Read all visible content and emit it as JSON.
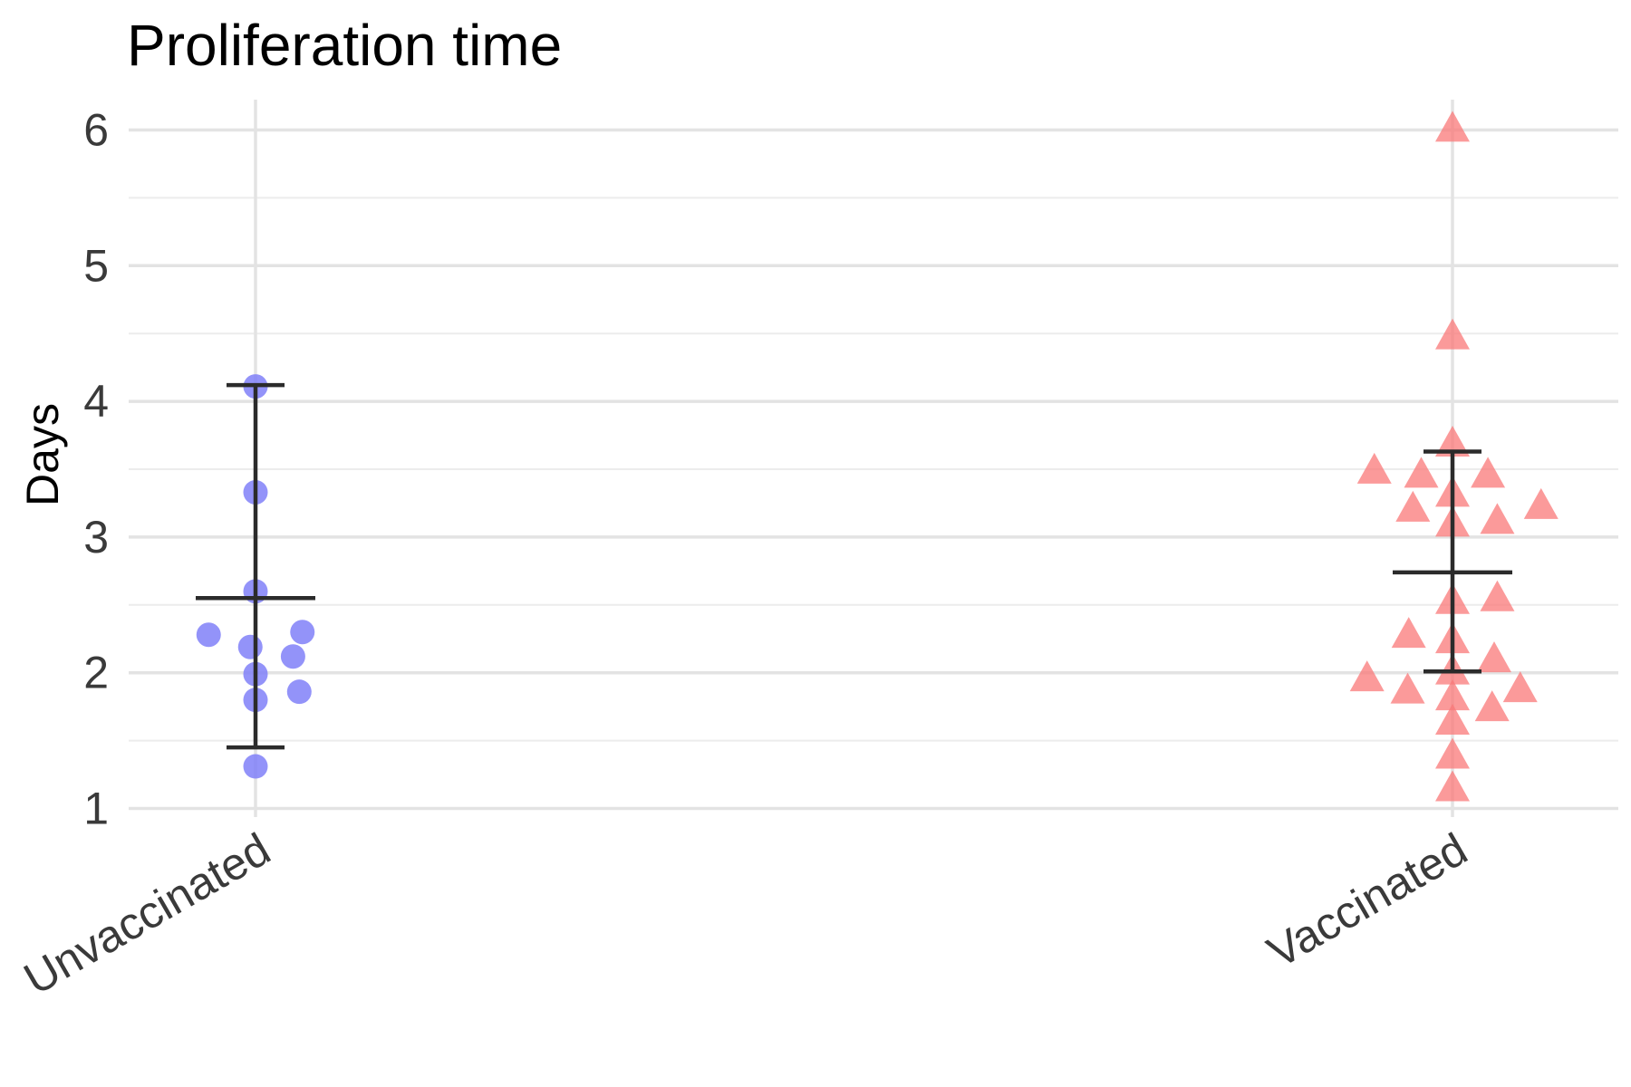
{
  "chart_data": {
    "type": "scatter",
    "title": "Proliferation time",
    "ylabel": "Days",
    "xlabel": "",
    "categories": [
      "Unvaccinated",
      "Vaccinated"
    ],
    "ylim": [
      0.95,
      6.22
    ],
    "yticks": [
      1,
      2,
      3,
      4,
      5,
      6
    ],
    "grid": true,
    "legend": "none",
    "series": [
      {
        "category": "Unvaccinated",
        "marker": "circle",
        "color": "#8080f8",
        "points": [
          {
            "x_offset": 0.0,
            "y": 4.11
          },
          {
            "x_offset": 0.0,
            "y": 3.33
          },
          {
            "x_offset": 0.0,
            "y": 2.6
          },
          {
            "x_offset": -0.045,
            "y": 2.28
          },
          {
            "x_offset": 0.045,
            "y": 2.3
          },
          {
            "x_offset": -0.005,
            "y": 2.19
          },
          {
            "x_offset": 0.036,
            "y": 2.12
          },
          {
            "x_offset": 0.0,
            "y": 1.99
          },
          {
            "x_offset": 0.042,
            "y": 1.86
          },
          {
            "x_offset": 0.0,
            "y": 1.8
          },
          {
            "x_offset": 0.0,
            "y": 1.31
          }
        ],
        "mean": 2.55,
        "error_low": 1.45,
        "error_high": 4.12
      },
      {
        "category": "Vaccinated",
        "marker": "triangle",
        "color": "#fa7878",
        "points": [
          {
            "x_offset": 0.0,
            "y": 6.0
          },
          {
            "x_offset": 0.0,
            "y": 4.47
          },
          {
            "x_offset": 0.0,
            "y": 3.68
          },
          {
            "x_offset": -0.075,
            "y": 3.48
          },
          {
            "x_offset": -0.03,
            "y": 3.45
          },
          {
            "x_offset": 0.034,
            "y": 3.45
          },
          {
            "x_offset": 0.0,
            "y": 3.31
          },
          {
            "x_offset": -0.038,
            "y": 3.2
          },
          {
            "x_offset": 0.085,
            "y": 3.22
          },
          {
            "x_offset": 0.0,
            "y": 3.09
          },
          {
            "x_offset": 0.043,
            "y": 3.11
          },
          {
            "x_offset": 0.0,
            "y": 2.52
          },
          {
            "x_offset": 0.043,
            "y": 2.54
          },
          {
            "x_offset": -0.042,
            "y": 2.27
          },
          {
            "x_offset": 0.0,
            "y": 2.23
          },
          {
            "x_offset": 0.04,
            "y": 2.09
          },
          {
            "x_offset": -0.082,
            "y": 1.95
          },
          {
            "x_offset": 0.0,
            "y": 2.0
          },
          {
            "x_offset": -0.043,
            "y": 1.86
          },
          {
            "x_offset": 0.0,
            "y": 1.81
          },
          {
            "x_offset": 0.065,
            "y": 1.87
          },
          {
            "x_offset": 0.038,
            "y": 1.73
          },
          {
            "x_offset": 0.0,
            "y": 1.63
          },
          {
            "x_offset": 0.0,
            "y": 1.38
          },
          {
            "x_offset": 0.0,
            "y": 1.14
          }
        ],
        "mean": 2.74,
        "error_low": 2.01,
        "error_high": 3.63
      }
    ]
  }
}
